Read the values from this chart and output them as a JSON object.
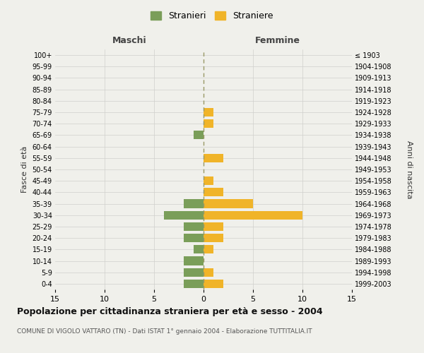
{
  "age_groups": [
    "0-4",
    "5-9",
    "10-14",
    "15-19",
    "20-24",
    "25-29",
    "30-34",
    "35-39",
    "40-44",
    "45-49",
    "50-54",
    "55-59",
    "60-64",
    "65-69",
    "70-74",
    "75-79",
    "80-84",
    "85-89",
    "90-94",
    "95-99",
    "100+"
  ],
  "birth_years": [
    "1999-2003",
    "1994-1998",
    "1989-1993",
    "1984-1988",
    "1979-1983",
    "1974-1978",
    "1969-1973",
    "1964-1968",
    "1959-1963",
    "1954-1958",
    "1949-1953",
    "1944-1948",
    "1939-1943",
    "1934-1938",
    "1929-1933",
    "1924-1928",
    "1919-1923",
    "1914-1918",
    "1909-1913",
    "1904-1908",
    "≤ 1903"
  ],
  "males": [
    2,
    2,
    2,
    1,
    2,
    2,
    4,
    2,
    0,
    0,
    0,
    0,
    0,
    1,
    0,
    0,
    0,
    0,
    0,
    0,
    0
  ],
  "females": [
    2,
    1,
    0,
    1,
    2,
    2,
    10,
    5,
    2,
    1,
    0,
    2,
    0,
    0,
    1,
    1,
    0,
    0,
    0,
    0,
    0
  ],
  "male_color": "#7a9e59",
  "female_color": "#f0b429",
  "background_color": "#f0f0eb",
  "grid_color": "#d0d0cc",
  "center_line_color": "#999966",
  "title": "Popolazione per cittadinanza straniera per età e sesso - 2004",
  "subtitle": "COMUNE DI VIGOLO VATTARO (TN) - Dati ISTAT 1° gennaio 2004 - Elaborazione TUTTITALIA.IT",
  "xlabel_left": "Maschi",
  "xlabel_right": "Femmine",
  "ylabel_left": "Fasce di età",
  "ylabel_right": "Anni di nascita",
  "xlim": 15,
  "legend_labels": [
    "Stranieri",
    "Straniere"
  ]
}
